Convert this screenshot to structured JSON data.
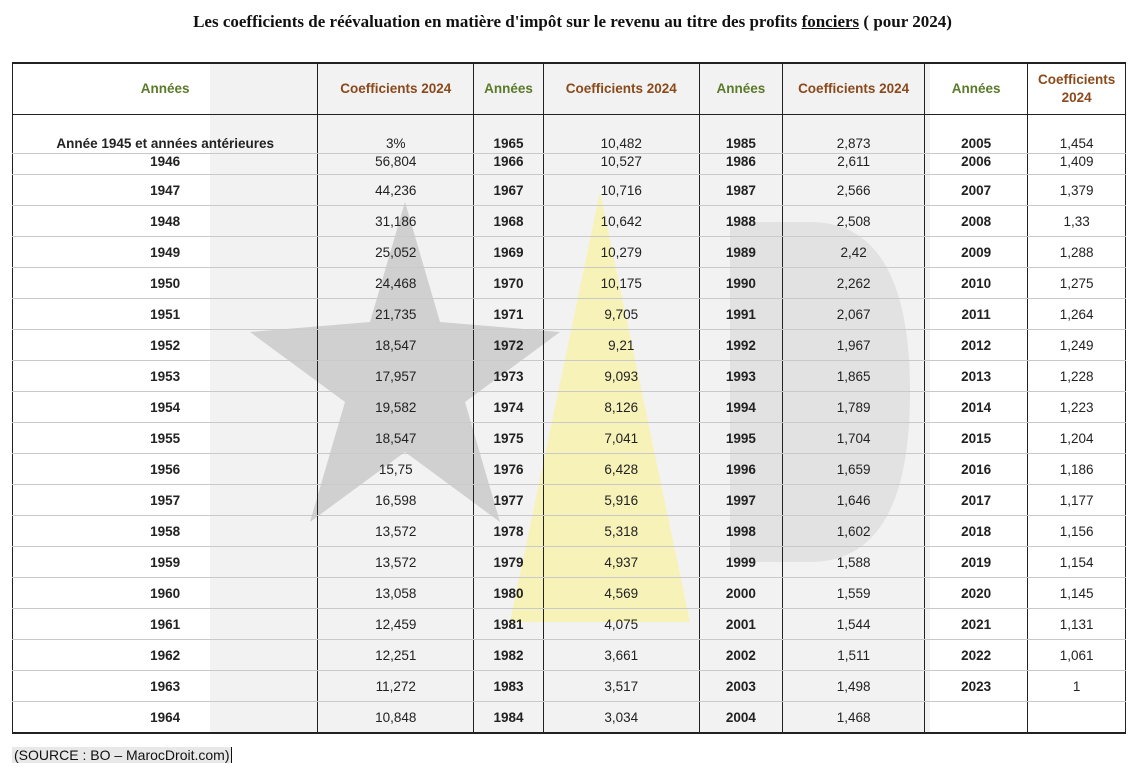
{
  "title_main": "Les coefficients de réévaluation en matière d'impôt sur le revenu au titre des profits ",
  "title_underlined": "fonciers",
  "title_tail": " ( pour 2024)",
  "headers": {
    "years": "Années",
    "coefficients": "Coefficients 2024"
  },
  "rows": [
    {
      "y1": "Année 1945 et années antérieures",
      "c1": "3%",
      "y2": "1965",
      "c2": "10,482",
      "y3": "1985",
      "c3": "2,873",
      "y4": "2005",
      "c4": "1,454"
    },
    {
      "y1": "1946",
      "c1": "56,804",
      "y2": "1966",
      "c2": "10,527",
      "y3": "1986",
      "c3": "2,611",
      "y4": "2006",
      "c4": "1,409"
    },
    {
      "y1": "1947",
      "c1": "44,236",
      "y2": "1967",
      "c2": "10,716",
      "y3": "1987",
      "c3": "2,566",
      "y4": "2007",
      "c4": "1,379"
    },
    {
      "y1": "1948",
      "c1": "31,186",
      "y2": "1968",
      "c2": "10,642",
      "y3": "1988",
      "c3": "2,508",
      "y4": "2008",
      "c4": "1,33"
    },
    {
      "y1": "1949",
      "c1": "25,052",
      "y2": "1969",
      "c2": "10,279",
      "y3": "1989",
      "c3": "2,42",
      "y4": "2009",
      "c4": "1,288"
    },
    {
      "y1": "1950",
      "c1": "24,468",
      "y2": "1970",
      "c2": "10,175",
      "y3": "1990",
      "c3": "2,262",
      "y4": "2010",
      "c4": "1,275"
    },
    {
      "y1": "1951",
      "c1": "21,735",
      "y2": "1971",
      "c2": "9,705",
      "y3": "1991",
      "c3": "2,067",
      "y4": "2011",
      "c4": "1,264"
    },
    {
      "y1": "1952",
      "c1": "18,547",
      "y2": "1972",
      "c2": "9,21",
      "y3": "1992",
      "c3": "1,967",
      "y4": "2012",
      "c4": "1,249"
    },
    {
      "y1": "1953",
      "c1": "17,957",
      "y2": "1973",
      "c2": "9,093",
      "y3": "1993",
      "c3": "1,865",
      "y4": "2013",
      "c4": "1,228"
    },
    {
      "y1": "1954",
      "c1": "19,582",
      "y2": "1974",
      "c2": "8,126",
      "y3": "1994",
      "c3": "1,789",
      "y4": "2014",
      "c4": "1,223"
    },
    {
      "y1": "1955",
      "c1": "18,547",
      "y2": "1975",
      "c2": "7,041",
      "y3": "1995",
      "c3": "1,704",
      "y4": "2015",
      "c4": "1,204"
    },
    {
      "y1": "1956",
      "c1": "15,75",
      "y2": "1976",
      "c2": "6,428",
      "y3": "1996",
      "c3": "1,659",
      "y4": "2016",
      "c4": "1,186"
    },
    {
      "y1": "1957",
      "c1": "16,598",
      "y2": "1977",
      "c2": "5,916",
      "y3": "1997",
      "c3": "1,646",
      "y4": "2017",
      "c4": "1,177"
    },
    {
      "y1": "1958",
      "c1": "13,572",
      "y2": "1978",
      "c2": "5,318",
      "y3": "1998",
      "c3": "1,602",
      "y4": "2018",
      "c4": "1,156"
    },
    {
      "y1": "1959",
      "c1": "13,572",
      "y2": "1979",
      "c2": "4,937",
      "y3": "1999",
      "c3": "1,588",
      "y4": "2019",
      "c4": "1,154"
    },
    {
      "y1": "1960",
      "c1": "13,058",
      "y2": "1980",
      "c2": "4,569",
      "y3": "2000",
      "c3": "1,559",
      "y4": "2020",
      "c4": "1,145"
    },
    {
      "y1": "1961",
      "c1": "12,459",
      "y2": "1981",
      "c2": "4,075",
      "y3": "2001",
      "c3": "1,544",
      "y4": "2021",
      "c4": "1,131"
    },
    {
      "y1": "1962",
      "c1": "12,251",
      "y2": "1982",
      "c2": "3,661",
      "y3": "2002",
      "c3": "1,511",
      "y4": "2022",
      "c4": "1,061"
    },
    {
      "y1": "1963",
      "c1": "11,272",
      "y2": "1983",
      "c2": "3,517",
      "y3": "2003",
      "c3": "1,498",
      "y4": "2023",
      "c4": "1"
    },
    {
      "y1": "1964",
      "c1": "10,848",
      "y2": "1984",
      "c2": "3,034",
      "y3": "2004",
      "c3": "1,468",
      "y4": "",
      "c4": ""
    }
  ],
  "source": "(SOURCE : BO – MarocDroit.com)",
  "colors": {
    "year_header": "#5b7a2a",
    "coef_header": "#8a4a1c",
    "watermark_star": "#c8c8c8",
    "watermark_triangle": "#f7f2b8"
  }
}
